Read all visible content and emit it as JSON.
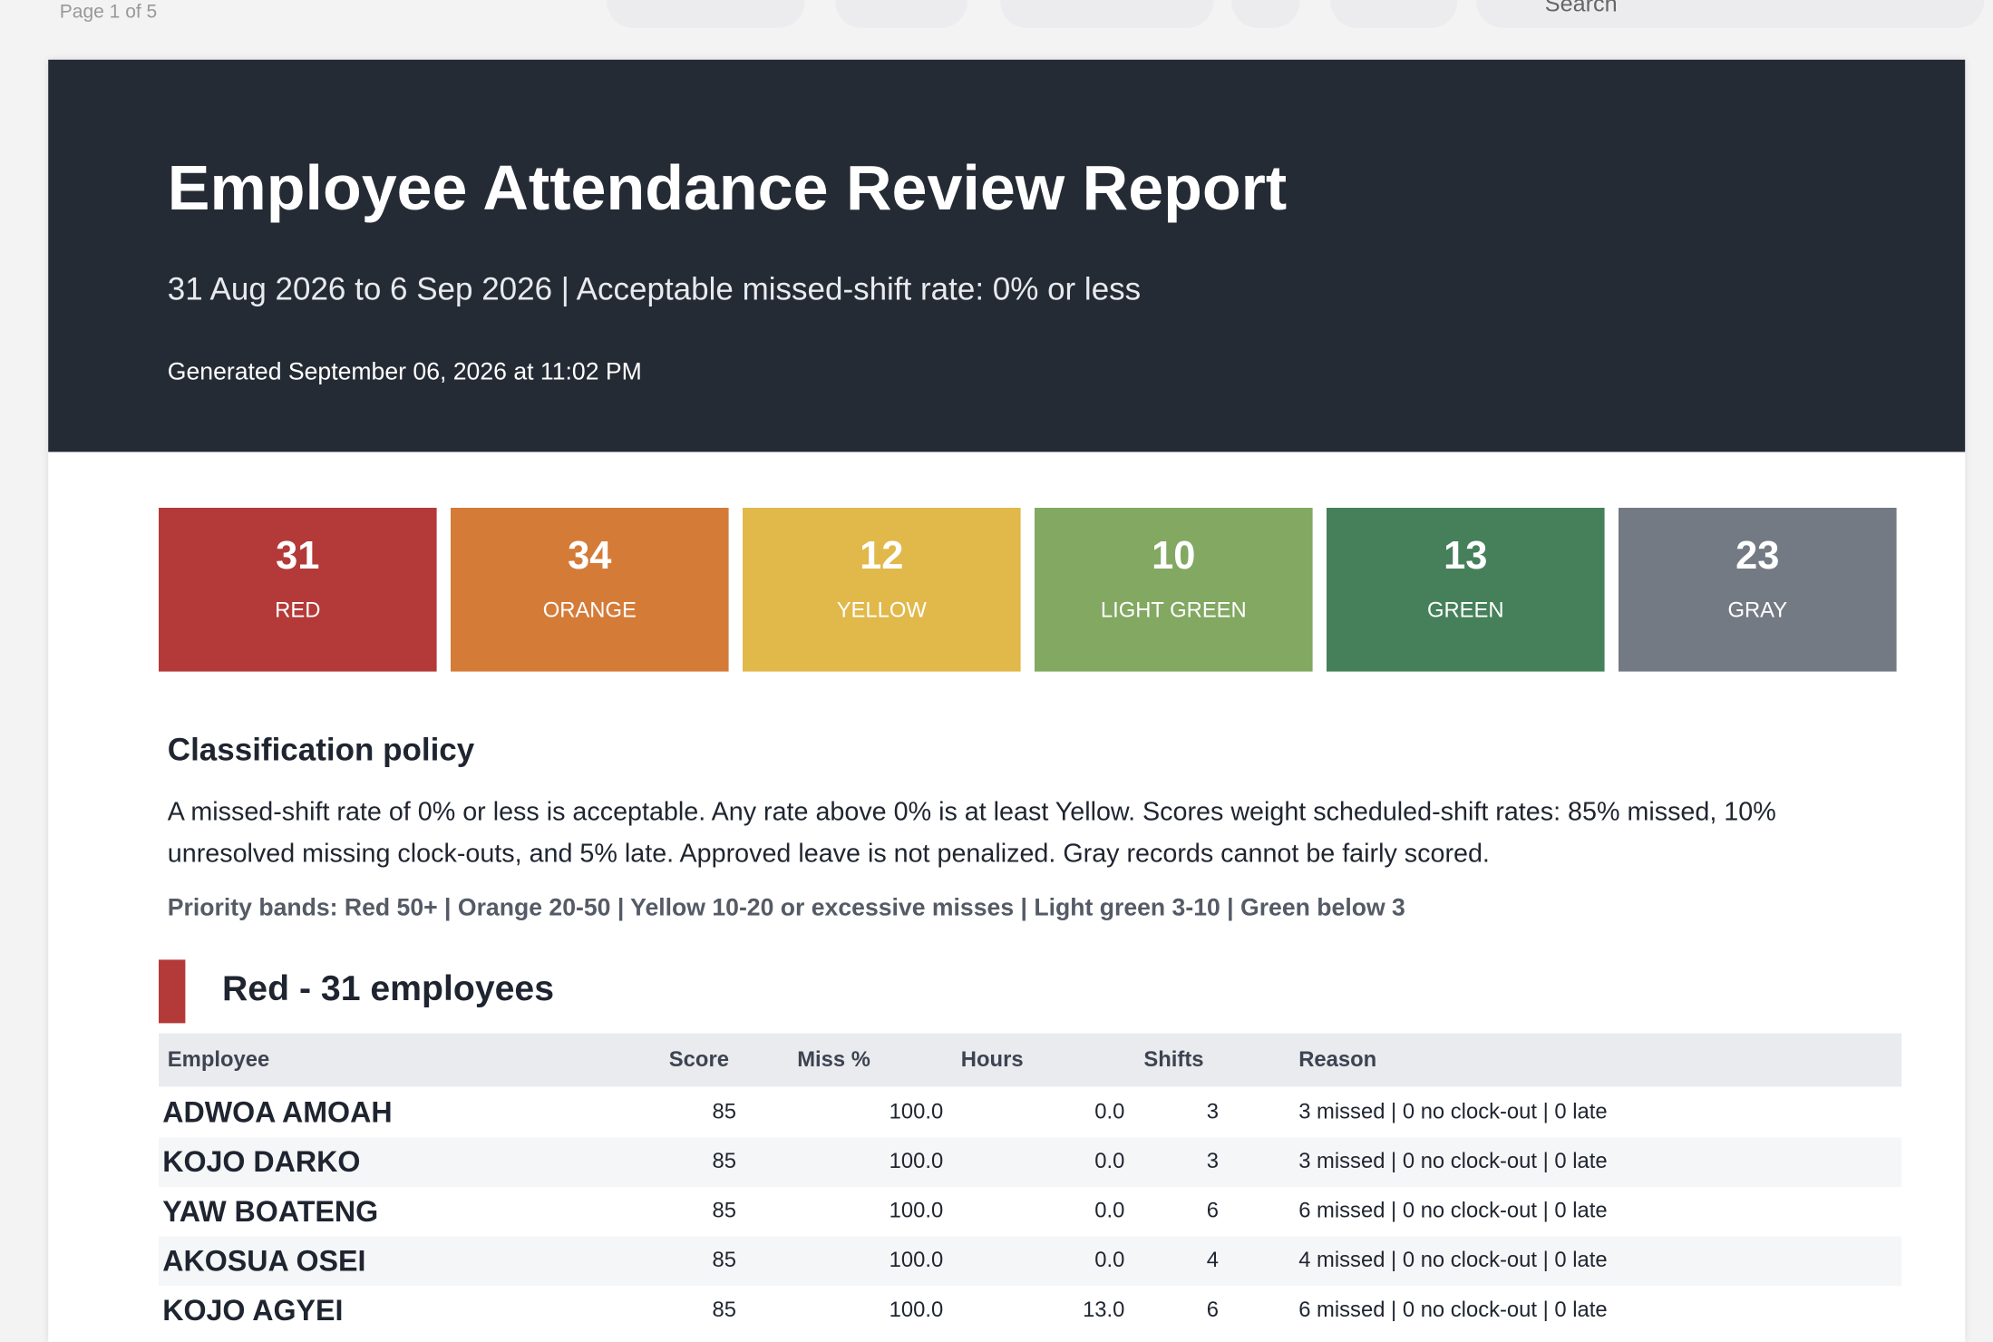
{
  "toolbar": {
    "page_label": "Page 1 of 5",
    "search": "Search"
  },
  "header": {
    "title": "Employee Attendance Review Report",
    "subtitle": "31 Aug 2026 to 6 Sep 2026 | Acceptable missed-shift rate: 0% or less",
    "generated": "Generated September 06, 2026 at 11:02 PM"
  },
  "summary": [
    {
      "count": "31",
      "label": "RED",
      "color": "#b33a38"
    },
    {
      "count": "34",
      "label": "ORANGE",
      "color": "#d57b38"
    },
    {
      "count": "12",
      "label": "YELLOW",
      "color": "#e1b84a"
    },
    {
      "count": "10",
      "label": "LIGHT GREEN",
      "color": "#82a862"
    },
    {
      "count": "13",
      "label": "GREEN",
      "color": "#45805a"
    },
    {
      "count": "23",
      "label": "GRAY",
      "color": "#747a84"
    }
  ],
  "policy": {
    "heading": "Classification policy",
    "text": "A missed-shift rate of 0% or less is acceptable. Any rate above 0% is at least Yellow. Scores weight scheduled-shift rates: 85% missed, 10% unresolved missing clock-outs, and 5% late. Approved leave is not penalized. Gray records cannot be fairly scored.",
    "bands": "Priority bands: Red 50+ | Orange 20-50 | Yellow 10-20 or excessive misses | Light green 3-10 | Green below 3"
  },
  "section": {
    "heading": "Red - 31 employees",
    "color": "#b33a38",
    "table": {
      "columns": [
        "Employee",
        "Score",
        "Miss %",
        "Hours",
        "Shifts",
        "Reason"
      ],
      "rows": [
        [
          "ADWOA AMOAH",
          "85",
          "100.0",
          "0.0",
          "3",
          "3 missed | 0 no clock-out | 0 late"
        ],
        [
          "KOJO DARKO",
          "85",
          "100.0",
          "0.0",
          "3",
          "3 missed | 0 no clock-out | 0 late"
        ],
        [
          "YAW BOATENG",
          "85",
          "100.0",
          "0.0",
          "6",
          "6 missed | 0 no clock-out | 0 late"
        ],
        [
          "AKOSUA OSEI",
          "85",
          "100.0",
          "0.0",
          "4",
          "4 missed | 0 no clock-out | 0 late"
        ],
        [
          "KOJO AGYEI",
          "85",
          "100.0",
          "13.0",
          "6",
          "6 missed | 0 no clock-out | 0 late"
        ]
      ]
    }
  }
}
